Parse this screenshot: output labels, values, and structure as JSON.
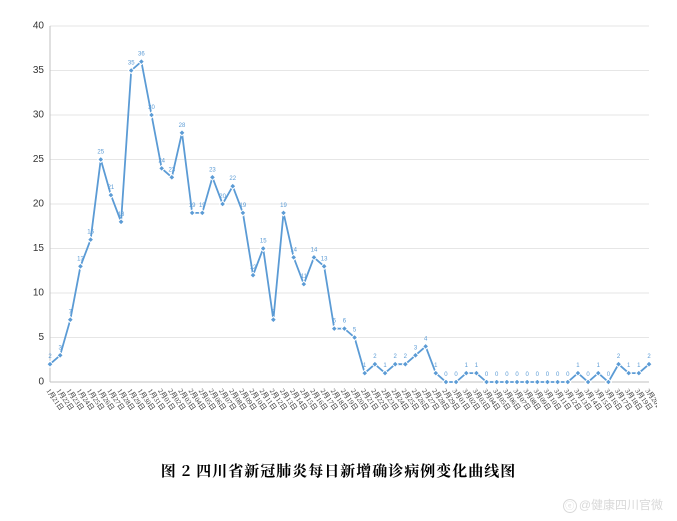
{
  "chart": {
    "type": "line",
    "title": null,
    "caption": "图 2    四川省新冠肺炎每日新增确诊病例变化曲线图",
    "watermark_text": "@健康四川官微",
    "background_color": "#ffffff",
    "grid_color": "#e6e6e6",
    "axis_color": "#c0c0c0",
    "line_color": "#5b9bd5",
    "marker_fill": "#5b9bd5",
    "marker_stroke": "#ffffff",
    "marker_type": "diamond",
    "marker_size": 3,
    "line_width": 1.8,
    "ylim": [
      0,
      40
    ],
    "ytick_step": 5,
    "label_fontsize": 10,
    "x_label_fontsize": 7,
    "point_label_fontsize": 6,
    "x_labels": [
      "1月21日",
      "1月22日",
      "1月23日",
      "1月24日",
      "1月25日",
      "1月26日",
      "1月27日",
      "1月28日",
      "1月29日",
      "1月30日",
      "1月31日",
      "2月01日",
      "2月02日",
      "2月03日",
      "2月04日",
      "2月05日",
      "2月06日",
      "2月07日",
      "2月08日",
      "2月09日",
      "2月10日",
      "2月11日",
      "2月12日",
      "2月13日",
      "2月14日",
      "2月15日",
      "2月16日",
      "2月17日",
      "2月18日",
      "2月19日",
      "2月20日",
      "2月21日",
      "2月22日",
      "2月23日",
      "2月24日",
      "2月25日",
      "2月26日",
      "2月27日",
      "2月28日",
      "2月29日",
      "3月01日",
      "3月02日",
      "3月03日",
      "3月04日",
      "3月05日",
      "3月06日",
      "3月07日",
      "3月08日",
      "3月09日",
      "3月10日",
      "3月11日",
      "3月12日",
      "3月13日",
      "3月14日",
      "3月15日",
      "3月16日",
      "3月17日",
      "3月18日",
      "3月19日",
      "3月20日"
    ],
    "values": [
      2,
      3,
      7,
      13,
      16,
      25,
      21,
      18,
      35,
      36,
      30,
      24,
      23,
      28,
      19,
      19,
      23,
      20,
      22,
      19,
      12,
      15,
      7,
      19,
      14,
      11,
      14,
      13,
      6,
      6,
      5,
      1,
      2,
      1,
      2,
      2,
      3,
      4,
      1,
      0,
      0,
      1,
      1,
      0,
      0,
      0,
      0,
      0,
      0,
      0,
      0,
      0,
      1,
      0,
      1,
      0,
      2,
      1,
      1,
      2
    ]
  }
}
